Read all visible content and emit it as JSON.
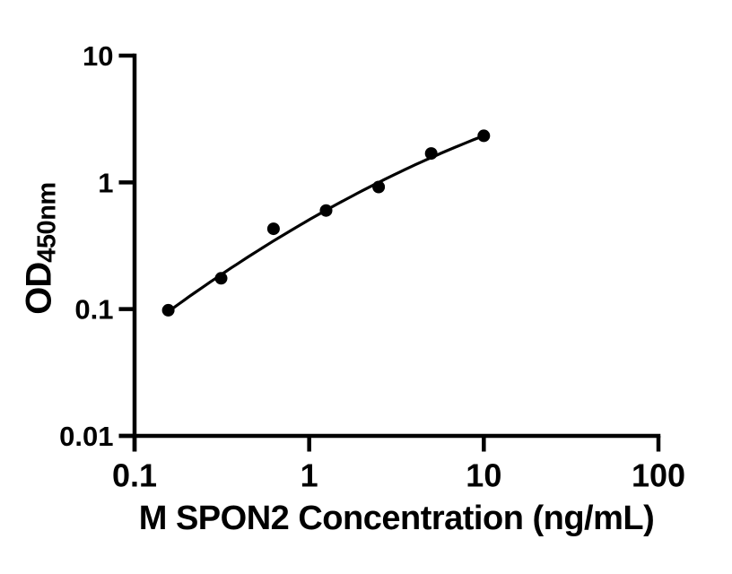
{
  "figure": {
    "background": "#ffffff"
  },
  "chart_data": {
    "type": "scatter",
    "title": "",
    "xlabel": "M SPON2 Concentration (ng/mL)",
    "ylabel": "OD",
    "ylabel_sub": "450nm",
    "xscale": "log",
    "yscale": "log",
    "xlim": [
      0.1,
      100
    ],
    "ylim": [
      0.01,
      10
    ],
    "grid": false,
    "legend": null,
    "x_ticks": [
      {
        "value": 0.1,
        "label": "0.1"
      },
      {
        "value": 1,
        "label": "1"
      },
      {
        "value": 10,
        "label": "10"
      },
      {
        "value": 100,
        "label": "100"
      }
    ],
    "y_ticks": [
      {
        "value": 0.01,
        "label": "0.01"
      },
      {
        "value": 0.1,
        "label": "0.1"
      },
      {
        "value": 1,
        "label": "1"
      },
      {
        "value": 10,
        "label": "10"
      }
    ],
    "points": [
      {
        "x": 0.156,
        "y": 0.098
      },
      {
        "x": 0.313,
        "y": 0.175
      },
      {
        "x": 0.625,
        "y": 0.43
      },
      {
        "x": 1.25,
        "y": 0.6
      },
      {
        "x": 2.5,
        "y": 0.92
      },
      {
        "x": 5,
        "y": 1.69
      },
      {
        "x": 10,
        "y": 2.33
      }
    ],
    "fit_curve": {
      "model": "quadratic in log10(x) vs log10(y)",
      "a": -0.295,
      "b": 0.793,
      "c": -0.13,
      "x_start": 0.156,
      "x_end": 10
    },
    "colors": {
      "marker": "#000000",
      "curve": "#000000",
      "axis": "#000000",
      "text": "#000000"
    },
    "marker_diameter_px": 14
  }
}
